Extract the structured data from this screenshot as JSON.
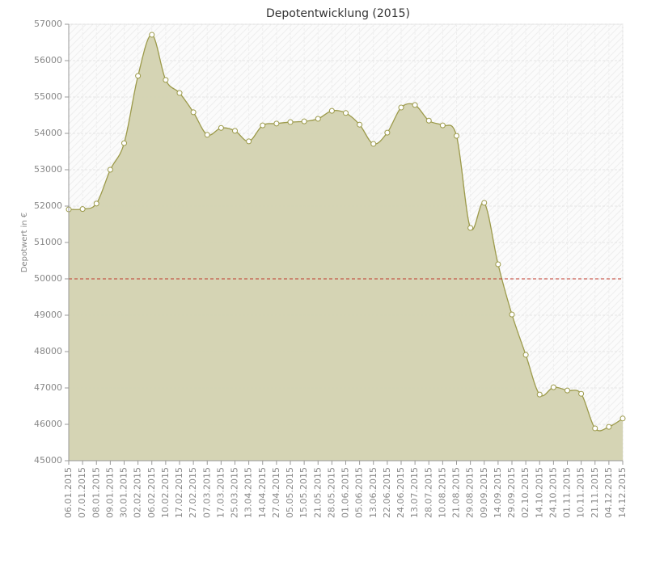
{
  "chart_data": {
    "type": "area",
    "title": "Depotentwicklung (2015)",
    "y_label": "Depotwert in €",
    "categories": [
      "06.01.2015",
      "07.01.2015",
      "08.01.2015",
      "09.01.2015",
      "30.01.2015",
      "02.02.2015",
      "06.02.2015",
      "10.02.2015",
      "17.02.2015",
      "27.02.2015",
      "07.03.2015",
      "17.03.2015",
      "25.03.2015",
      "13.04.2015",
      "14.04.2015",
      "27.04.2015",
      "05.05.2015",
      "15.05.2015",
      "21.05.2015",
      "28.05.2015",
      "01.06.2015",
      "05.06.2015",
      "13.06.2015",
      "22.06.2015",
      "24.06.2015",
      "13.07.2015",
      "28.07.2015",
      "10.08.2015",
      "21.08.2015",
      "29.08.2015",
      "09.09.2015",
      "14.09.2015",
      "29.09.2015",
      "02.10.2015",
      "14.10.2015",
      "24.10.2015",
      "01.11.2015",
      "10.11.2015",
      "21.11.2015",
      "04.12.2015",
      "14.12.2015"
    ],
    "values": [
      51910,
      51920,
      52070,
      53000,
      53730,
      55580,
      56710,
      55470,
      55110,
      54580,
      53960,
      54150,
      54070,
      53780,
      54220,
      54270,
      54310,
      54330,
      54400,
      54620,
      54560,
      54240,
      53710,
      54020,
      54710,
      54780,
      54350,
      54220,
      53930,
      51400,
      52090,
      50400,
      49020,
      47910,
      46820,
      47020,
      46930,
      46840,
      45890,
      45930,
      46160
    ],
    "color": "#9c9a4a",
    "fill_color": "#d3d2b0",
    "reference_line": 50000,
    "reference_color": "#c0392b",
    "ylim": [
      45000,
      57000
    ],
    "yticks": [
      45000,
      46000,
      47000,
      48000,
      49000,
      50000,
      51000,
      52000,
      53000,
      54000,
      55000,
      56000,
      57000
    ],
    "grid": true
  }
}
